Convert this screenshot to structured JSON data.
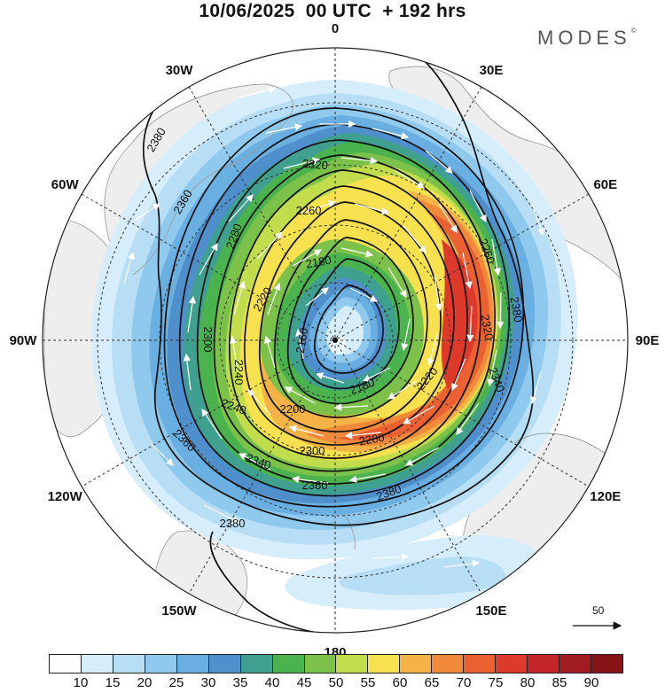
{
  "header": {
    "title": "10/06/2025  00 UTC  + 192 hrs",
    "brand": "MODES"
  },
  "map": {
    "projection": "north-polar-stereographic",
    "lon_labels": [
      {
        "lon": 0,
        "text": "0"
      },
      {
        "lon": 30,
        "text": "30E"
      },
      {
        "lon": 60,
        "text": "60E"
      },
      {
        "lon": 90,
        "text": "90E"
      },
      {
        "lon": 120,
        "text": "120E"
      },
      {
        "lon": 150,
        "text": "150E"
      },
      {
        "lon": 180,
        "text": "180"
      },
      {
        "lon": -150,
        "text": "150W"
      },
      {
        "lon": -120,
        "text": "120W"
      },
      {
        "lon": -90,
        "text": "90W"
      },
      {
        "lon": -60,
        "text": "60W"
      },
      {
        "lon": -30,
        "text": "30W"
      }
    ],
    "contour_labels": [
      "2380",
      "2360",
      "2340",
      "2320",
      "2300",
      "2280",
      "2260",
      "2240",
      "2220",
      "2200",
      "2180",
      "2160"
    ],
    "contours": [
      {
        "value": 2160,
        "label": "2160"
      },
      {
        "value": 2180,
        "label": "2180"
      },
      {
        "value": 2200,
        "label": "2200"
      },
      {
        "value": 2220,
        "label": "2220"
      },
      {
        "value": 2240,
        "label": "2240"
      },
      {
        "value": 2260,
        "label": "2260"
      },
      {
        "value": 2280,
        "label": "2280"
      },
      {
        "value": 2300,
        "label": "2300"
      },
      {
        "value": 2320,
        "label": "2320"
      },
      {
        "value": 2340,
        "label": "2340"
      },
      {
        "value": 2360,
        "label": "2360"
      },
      {
        "value": 2380,
        "label": "2380"
      }
    ],
    "wind_reference": {
      "label": "50",
      "units": "vector scale"
    }
  },
  "colorbar": {
    "labels": [
      "10",
      "15",
      "20",
      "25",
      "30",
      "35",
      "40",
      "45",
      "50",
      "55",
      "60",
      "65",
      "70",
      "75",
      "80",
      "85",
      "90"
    ],
    "colors": [
      "#ffffff",
      "#d6eefb",
      "#b7def5",
      "#8fc9ee",
      "#6aafe2",
      "#4f8fcc",
      "#3fa08f",
      "#4bb34e",
      "#7cc24a",
      "#c2dd4c",
      "#f7e14f",
      "#f5b247",
      "#f08a3a",
      "#eb6131",
      "#dd3a2c",
      "#c4252a",
      "#a01c22",
      "#861417"
    ]
  }
}
